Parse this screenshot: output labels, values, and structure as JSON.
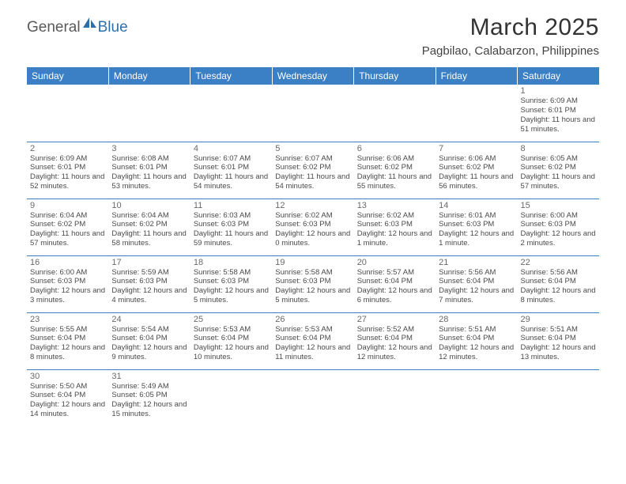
{
  "brand": {
    "part1": "General",
    "part2": "Blue"
  },
  "title": "March 2025",
  "location": "Pagbilao, Calabarzon, Philippines",
  "colors": {
    "header_bg": "#3b7fc4",
    "header_text": "#ffffff",
    "border": "#3b7fc4",
    "day_num": "#6a6a6a",
    "day_info": "#4a4a4a",
    "brand_gray": "#5a5a5a",
    "brand_blue": "#2f6fa8"
  },
  "weekdays": [
    "Sunday",
    "Monday",
    "Tuesday",
    "Wednesday",
    "Thursday",
    "Friday",
    "Saturday"
  ],
  "weeks": [
    [
      null,
      null,
      null,
      null,
      null,
      null,
      {
        "n": "1",
        "sr": "6:09 AM",
        "ss": "6:01 PM",
        "dl": "11 hours and 51 minutes."
      }
    ],
    [
      {
        "n": "2",
        "sr": "6:09 AM",
        "ss": "6:01 PM",
        "dl": "11 hours and 52 minutes."
      },
      {
        "n": "3",
        "sr": "6:08 AM",
        "ss": "6:01 PM",
        "dl": "11 hours and 53 minutes."
      },
      {
        "n": "4",
        "sr": "6:07 AM",
        "ss": "6:01 PM",
        "dl": "11 hours and 54 minutes."
      },
      {
        "n": "5",
        "sr": "6:07 AM",
        "ss": "6:02 PM",
        "dl": "11 hours and 54 minutes."
      },
      {
        "n": "6",
        "sr": "6:06 AM",
        "ss": "6:02 PM",
        "dl": "11 hours and 55 minutes."
      },
      {
        "n": "7",
        "sr": "6:06 AM",
        "ss": "6:02 PM",
        "dl": "11 hours and 56 minutes."
      },
      {
        "n": "8",
        "sr": "6:05 AM",
        "ss": "6:02 PM",
        "dl": "11 hours and 57 minutes."
      }
    ],
    [
      {
        "n": "9",
        "sr": "6:04 AM",
        "ss": "6:02 PM",
        "dl": "11 hours and 57 minutes."
      },
      {
        "n": "10",
        "sr": "6:04 AM",
        "ss": "6:02 PM",
        "dl": "11 hours and 58 minutes."
      },
      {
        "n": "11",
        "sr": "6:03 AM",
        "ss": "6:03 PM",
        "dl": "11 hours and 59 minutes."
      },
      {
        "n": "12",
        "sr": "6:02 AM",
        "ss": "6:03 PM",
        "dl": "12 hours and 0 minutes."
      },
      {
        "n": "13",
        "sr": "6:02 AM",
        "ss": "6:03 PM",
        "dl": "12 hours and 1 minute."
      },
      {
        "n": "14",
        "sr": "6:01 AM",
        "ss": "6:03 PM",
        "dl": "12 hours and 1 minute."
      },
      {
        "n": "15",
        "sr": "6:00 AM",
        "ss": "6:03 PM",
        "dl": "12 hours and 2 minutes."
      }
    ],
    [
      {
        "n": "16",
        "sr": "6:00 AM",
        "ss": "6:03 PM",
        "dl": "12 hours and 3 minutes."
      },
      {
        "n": "17",
        "sr": "5:59 AM",
        "ss": "6:03 PM",
        "dl": "12 hours and 4 minutes."
      },
      {
        "n": "18",
        "sr": "5:58 AM",
        "ss": "6:03 PM",
        "dl": "12 hours and 5 minutes."
      },
      {
        "n": "19",
        "sr": "5:58 AM",
        "ss": "6:03 PM",
        "dl": "12 hours and 5 minutes."
      },
      {
        "n": "20",
        "sr": "5:57 AM",
        "ss": "6:04 PM",
        "dl": "12 hours and 6 minutes."
      },
      {
        "n": "21",
        "sr": "5:56 AM",
        "ss": "6:04 PM",
        "dl": "12 hours and 7 minutes."
      },
      {
        "n": "22",
        "sr": "5:56 AM",
        "ss": "6:04 PM",
        "dl": "12 hours and 8 minutes."
      }
    ],
    [
      {
        "n": "23",
        "sr": "5:55 AM",
        "ss": "6:04 PM",
        "dl": "12 hours and 8 minutes."
      },
      {
        "n": "24",
        "sr": "5:54 AM",
        "ss": "6:04 PM",
        "dl": "12 hours and 9 minutes."
      },
      {
        "n": "25",
        "sr": "5:53 AM",
        "ss": "6:04 PM",
        "dl": "12 hours and 10 minutes."
      },
      {
        "n": "26",
        "sr": "5:53 AM",
        "ss": "6:04 PM",
        "dl": "12 hours and 11 minutes."
      },
      {
        "n": "27",
        "sr": "5:52 AM",
        "ss": "6:04 PM",
        "dl": "12 hours and 12 minutes."
      },
      {
        "n": "28",
        "sr": "5:51 AM",
        "ss": "6:04 PM",
        "dl": "12 hours and 12 minutes."
      },
      {
        "n": "29",
        "sr": "5:51 AM",
        "ss": "6:04 PM",
        "dl": "12 hours and 13 minutes."
      }
    ],
    [
      {
        "n": "30",
        "sr": "5:50 AM",
        "ss": "6:04 PM",
        "dl": "12 hours and 14 minutes."
      },
      {
        "n": "31",
        "sr": "5:49 AM",
        "ss": "6:05 PM",
        "dl": "12 hours and 15 minutes."
      },
      null,
      null,
      null,
      null,
      null
    ]
  ]
}
